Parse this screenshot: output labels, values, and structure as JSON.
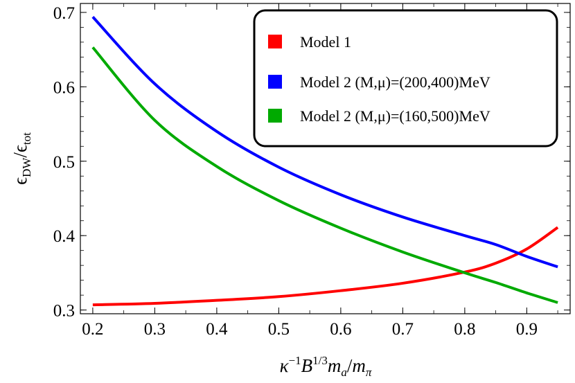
{
  "chart_data": {
    "type": "line",
    "title": "",
    "xlabel": "κ⁻¹B^{1/3}m_a/m_π",
    "ylabel": "ε_DW/ε_tot",
    "xlim": [
      0.18,
      0.97
    ],
    "ylim": [
      0.295,
      0.712
    ],
    "x_ticks": [
      0.2,
      0.3,
      0.4,
      0.5,
      0.6,
      0.7,
      0.8,
      0.9
    ],
    "y_ticks": [
      0.3,
      0.4,
      0.5,
      0.6,
      0.7
    ],
    "x_tick_labels": [
      "0.2",
      "0.3",
      "0.4",
      "0.5",
      "0.6",
      "0.7",
      "0.8",
      "0.9"
    ],
    "y_tick_labels": [
      "0.3",
      "0.4",
      "0.5",
      "0.6",
      "0.7"
    ],
    "grid": false,
    "legend_position": "top-right",
    "x": [
      0.2,
      0.3,
      0.4,
      0.5,
      0.6,
      0.7,
      0.8,
      0.85,
      0.9,
      0.95
    ],
    "series": [
      {
        "name": "Model 1",
        "color": "#ff0000",
        "values": [
          0.307,
          0.309,
          0.313,
          0.318,
          0.326,
          0.336,
          0.351,
          0.363,
          0.382,
          0.411
        ]
      },
      {
        "name": "Model 2 (M,μ)=(200,400)MeV",
        "color": "#0000ff",
        "values": [
          0.694,
          0.604,
          0.54,
          0.492,
          0.455,
          0.425,
          0.4,
          0.388,
          0.372,
          0.358
        ]
      },
      {
        "name": "Model 2 (M,μ)=(160,500)MeV",
        "color": "#00aa00",
        "values": [
          0.653,
          0.555,
          0.493,
          0.447,
          0.41,
          0.378,
          0.35,
          0.337,
          0.323,
          0.31
        ]
      }
    ]
  }
}
